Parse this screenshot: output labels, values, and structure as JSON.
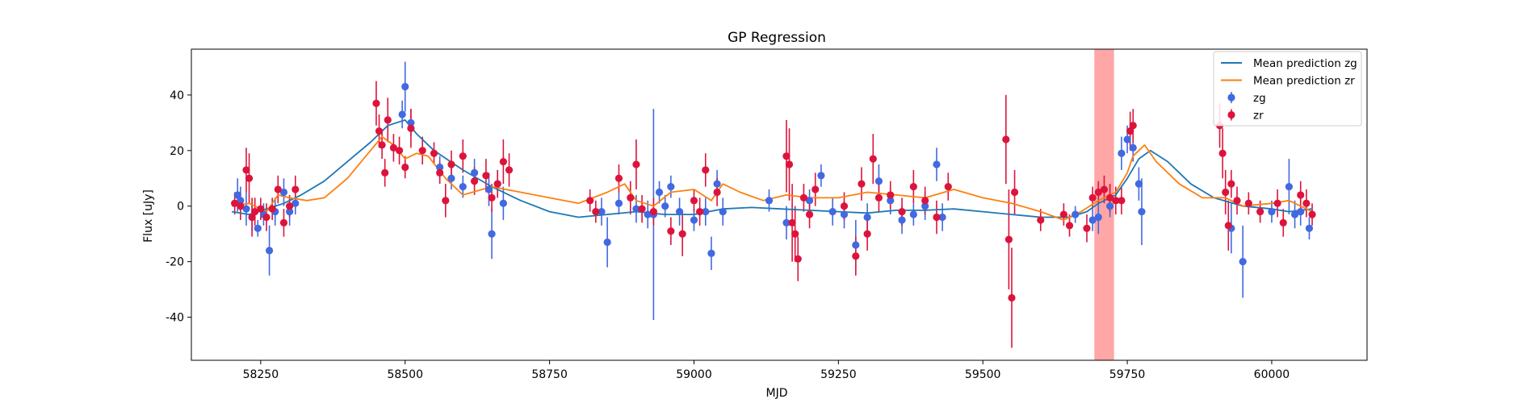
{
  "chart_data": {
    "type": "scatter",
    "title": "GP Regression",
    "xlabel": "MJD",
    "ylabel": "Flux [uJy]",
    "xlim": [
      58130,
      60165
    ],
    "ylim": [
      -55.5,
      56.5
    ],
    "x_ticks": [
      58250,
      58500,
      58750,
      59000,
      59250,
      59500,
      59750,
      60000
    ],
    "y_ticks": [
      -40,
      -20,
      0,
      20,
      40
    ],
    "grid": false,
    "legend": {
      "placement": "top-right",
      "entries": [
        {
          "label": "Mean prediction zg",
          "kind": "line",
          "color": "#1f77b4"
        },
        {
          "label": "Mean prediction zr",
          "kind": "line",
          "color": "#ff7f0e"
        },
        {
          "label": "zg",
          "kind": "errorbar",
          "color": "#4169e1"
        },
        {
          "label": "zr",
          "kind": "errorbar",
          "color": "#dc143c"
        }
      ]
    },
    "highlight": {
      "x_start": 59693,
      "x_end": 59727,
      "color": "#ff0000",
      "alpha": 0.35
    },
    "lines": [
      {
        "name": "Mean prediction zg",
        "color": "#1f77b4",
        "points": [
          [
            58200,
            -2
          ],
          [
            58230,
            -3
          ],
          [
            58260,
            -1
          ],
          [
            58290,
            1
          ],
          [
            58320,
            4
          ],
          [
            58360,
            9
          ],
          [
            58400,
            16
          ],
          [
            58440,
            23
          ],
          [
            58470,
            29
          ],
          [
            58500,
            31
          ],
          [
            58520,
            26
          ],
          [
            58550,
            20
          ],
          [
            58600,
            13
          ],
          [
            58650,
            7
          ],
          [
            58700,
            2
          ],
          [
            58750,
            -2
          ],
          [
            58800,
            -4
          ],
          [
            58850,
            -3
          ],
          [
            58900,
            -2
          ],
          [
            58950,
            -3
          ],
          [
            59000,
            -3
          ],
          [
            59050,
            -1
          ],
          [
            59100,
            -0.5
          ],
          [
            59150,
            -1
          ],
          [
            59200,
            -1.5
          ],
          [
            59250,
            -2
          ],
          [
            59300,
            -2.5
          ],
          [
            59350,
            -1.5
          ],
          [
            59400,
            -1.5
          ],
          [
            59450,
            -1
          ],
          [
            59500,
            -2
          ],
          [
            59550,
            -3
          ],
          [
            59600,
            -4
          ],
          [
            59650,
            -4
          ],
          [
            59680,
            -2
          ],
          [
            59700,
            1
          ],
          [
            59730,
            4
          ],
          [
            59750,
            10
          ],
          [
            59770,
            17
          ],
          [
            59790,
            20
          ],
          [
            59820,
            16
          ],
          [
            59860,
            8
          ],
          [
            59900,
            3
          ],
          [
            59950,
            0
          ],
          [
            60000,
            -1
          ],
          [
            60030,
            -2
          ],
          [
            60070,
            -1
          ]
        ]
      },
      {
        "name": "Mean prediction zr",
        "color": "#ff7f0e",
        "points": [
          [
            58200,
            0
          ],
          [
            58230,
            1
          ],
          [
            58260,
            -2
          ],
          [
            58280,
            4
          ],
          [
            58300,
            3
          ],
          [
            58330,
            2
          ],
          [
            58360,
            3
          ],
          [
            58400,
            10
          ],
          [
            58440,
            20
          ],
          [
            58460,
            25
          ],
          [
            58480,
            22
          ],
          [
            58500,
            17
          ],
          [
            58520,
            19
          ],
          [
            58540,
            18
          ],
          [
            58570,
            10
          ],
          [
            58600,
            4
          ],
          [
            58650,
            7
          ],
          [
            58700,
            5
          ],
          [
            58750,
            3
          ],
          [
            58800,
            1
          ],
          [
            58850,
            5
          ],
          [
            58880,
            8
          ],
          [
            58900,
            2
          ],
          [
            58930,
            0
          ],
          [
            58960,
            5
          ],
          [
            59000,
            6
          ],
          [
            59030,
            2
          ],
          [
            59050,
            8
          ],
          [
            59080,
            5
          ],
          [
            59120,
            2
          ],
          [
            59160,
            4
          ],
          [
            59200,
            3
          ],
          [
            59250,
            3
          ],
          [
            59300,
            5
          ],
          [
            59350,
            4
          ],
          [
            59400,
            3
          ],
          [
            59450,
            6
          ],
          [
            59500,
            3
          ],
          [
            59550,
            1
          ],
          [
            59600,
            -2
          ],
          [
            59640,
            -5
          ],
          [
            59670,
            -2
          ],
          [
            59700,
            2
          ],
          [
            59730,
            5
          ],
          [
            59750,
            12
          ],
          [
            59760,
            18
          ],
          [
            59780,
            22
          ],
          [
            59800,
            16
          ],
          [
            59840,
            8
          ],
          [
            59880,
            3
          ],
          [
            59920,
            3
          ],
          [
            59950,
            0
          ],
          [
            60000,
            1
          ],
          [
            60030,
            2
          ],
          [
            60070,
            -2
          ]
        ]
      }
    ],
    "series": [
      {
        "name": "zg",
        "color": "#4169e1",
        "points": [
          [
            58210,
            4,
            6
          ],
          [
            58215,
            2,
            5
          ],
          [
            58225,
            -1,
            6
          ],
          [
            58235,
            -4,
            5
          ],
          [
            58245,
            -8,
            3
          ],
          [
            58255,
            -3,
            4
          ],
          [
            58265,
            -16,
            9
          ],
          [
            58275,
            -2,
            5
          ],
          [
            58290,
            5,
            5
          ],
          [
            58300,
            -2,
            5
          ],
          [
            58310,
            1,
            4
          ],
          [
            58495,
            33,
            5
          ],
          [
            58500,
            43,
            9
          ],
          [
            58510,
            30,
            5
          ],
          [
            58560,
            14,
            4
          ],
          [
            58580,
            10,
            4
          ],
          [
            58600,
            7,
            4
          ],
          [
            58620,
            12,
            5
          ],
          [
            58645,
            6,
            6
          ],
          [
            58650,
            -10,
            9
          ],
          [
            58660,
            8,
            5
          ],
          [
            58670,
            1,
            6
          ],
          [
            58840,
            -2,
            5
          ],
          [
            58850,
            -13,
            9
          ],
          [
            58870,
            1,
            4
          ],
          [
            58900,
            -1,
            5
          ],
          [
            58920,
            -3,
            5
          ],
          [
            58930,
            -3,
            38
          ],
          [
            58940,
            5,
            4
          ],
          [
            58950,
            0,
            4
          ],
          [
            58960,
            7,
            4
          ],
          [
            58975,
            -2,
            5
          ],
          [
            59000,
            -5,
            4
          ],
          [
            59020,
            -2,
            5
          ],
          [
            59030,
            -17,
            6
          ],
          [
            59040,
            8,
            5
          ],
          [
            59050,
            -2,
            5
          ],
          [
            59130,
            2,
            4
          ],
          [
            59160,
            -6,
            6
          ],
          [
            59200,
            2,
            4
          ],
          [
            59220,
            11,
            4
          ],
          [
            59240,
            -2,
            5
          ],
          [
            59260,
            -3,
            5
          ],
          [
            59280,
            -14,
            9
          ],
          [
            59300,
            -4,
            5
          ],
          [
            59320,
            9,
            6
          ],
          [
            59340,
            2,
            5
          ],
          [
            59360,
            -5,
            5
          ],
          [
            59380,
            -3,
            4
          ],
          [
            59400,
            0,
            5
          ],
          [
            59420,
            15,
            6
          ],
          [
            59430,
            -4,
            5
          ],
          [
            59660,
            -3,
            3
          ],
          [
            59690,
            -5,
            4
          ],
          [
            59700,
            -4,
            6
          ],
          [
            59720,
            0,
            4
          ],
          [
            59740,
            19,
            6
          ],
          [
            59750,
            24,
            5
          ],
          [
            59760,
            21,
            5
          ],
          [
            59770,
            8,
            6
          ],
          [
            59775,
            -2,
            12
          ],
          [
            59930,
            -8,
            9
          ],
          [
            59950,
            -20,
            13
          ],
          [
            60000,
            -2,
            4
          ],
          [
            60030,
            7,
            10
          ],
          [
            60040,
            -3,
            5
          ],
          [
            60050,
            -2,
            5
          ],
          [
            60065,
            -8,
            4
          ]
        ]
      },
      {
        "name": "zr",
        "color": "#dc143c",
        "points": [
          [
            58205,
            1,
            4
          ],
          [
            58215,
            0,
            5
          ],
          [
            58225,
            13,
            8
          ],
          [
            58230,
            10,
            9
          ],
          [
            58235,
            -4,
            7
          ],
          [
            58240,
            -2,
            5
          ],
          [
            58250,
            -1,
            4
          ],
          [
            58260,
            -4,
            5
          ],
          [
            58270,
            -1,
            4
          ],
          [
            58280,
            6,
            5
          ],
          [
            58290,
            -6,
            5
          ],
          [
            58300,
            0,
            4
          ],
          [
            58310,
            6,
            5
          ],
          [
            58450,
            37,
            8
          ],
          [
            58455,
            27,
            6
          ],
          [
            58460,
            22,
            5
          ],
          [
            58465,
            12,
            5
          ],
          [
            58470,
            31,
            8
          ],
          [
            58480,
            21,
            5
          ],
          [
            58490,
            20,
            5
          ],
          [
            58500,
            14,
            4
          ],
          [
            58510,
            28,
            7
          ],
          [
            58530,
            20,
            5
          ],
          [
            58550,
            19,
            4
          ],
          [
            58560,
            12,
            4
          ],
          [
            58570,
            2,
            6
          ],
          [
            58580,
            15,
            5
          ],
          [
            58600,
            18,
            6
          ],
          [
            58620,
            9,
            5
          ],
          [
            58640,
            11,
            6
          ],
          [
            58650,
            3,
            5
          ],
          [
            58660,
            8,
            5
          ],
          [
            58670,
            16,
            8
          ],
          [
            58680,
            13,
            6
          ],
          [
            58820,
            2,
            4
          ],
          [
            58830,
            -2,
            4
          ],
          [
            58870,
            10,
            5
          ],
          [
            58890,
            3,
            6
          ],
          [
            58900,
            15,
            9
          ],
          [
            58910,
            -1,
            5
          ],
          [
            58930,
            -2,
            5
          ],
          [
            58960,
            -9,
            5
          ],
          [
            58980,
            -10,
            8
          ],
          [
            59000,
            2,
            4
          ],
          [
            59010,
            -2,
            5
          ],
          [
            59020,
            13,
            6
          ],
          [
            59040,
            5,
            5
          ],
          [
            59160,
            18,
            13
          ],
          [
            59165,
            15,
            13
          ],
          [
            59170,
            -6,
            14
          ],
          [
            59175,
            -10,
            10
          ],
          [
            59180,
            -19,
            8
          ],
          [
            59190,
            3,
            5
          ],
          [
            59200,
            -3,
            5
          ],
          [
            59210,
            6,
            6
          ],
          [
            59260,
            0,
            5
          ],
          [
            59280,
            -18,
            7
          ],
          [
            59290,
            8,
            6
          ],
          [
            59300,
            -10,
            6
          ],
          [
            59310,
            17,
            9
          ],
          [
            59320,
            3,
            5
          ],
          [
            59340,
            4,
            5
          ],
          [
            59360,
            -2,
            5
          ],
          [
            59380,
            7,
            6
          ],
          [
            59400,
            2,
            5
          ],
          [
            59420,
            -4,
            6
          ],
          [
            59440,
            7,
            5
          ],
          [
            59540,
            24,
            16
          ],
          [
            59545,
            -12,
            18
          ],
          [
            59550,
            -33,
            18
          ],
          [
            59555,
            5,
            8
          ],
          [
            59600,
            -5,
            4
          ],
          [
            59640,
            -3,
            4
          ],
          [
            59650,
            -7,
            4
          ],
          [
            59680,
            -8,
            5
          ],
          [
            59690,
            3,
            4
          ],
          [
            59700,
            5,
            4
          ],
          [
            59710,
            6,
            5
          ],
          [
            59720,
            3,
            5
          ],
          [
            59730,
            2,
            5
          ],
          [
            59740,
            2,
            5
          ],
          [
            59755,
            27,
            7
          ],
          [
            59760,
            29,
            6
          ],
          [
            59910,
            29,
            8
          ],
          [
            59915,
            19,
            9
          ],
          [
            59920,
            5,
            8
          ],
          [
            59925,
            -7,
            9
          ],
          [
            59930,
            8,
            5
          ],
          [
            59940,
            2,
            5
          ],
          [
            59960,
            1,
            4
          ],
          [
            59980,
            -2,
            4
          ],
          [
            60010,
            1,
            5
          ],
          [
            60020,
            -6,
            5
          ],
          [
            60050,
            4,
            5
          ],
          [
            60060,
            1,
            5
          ],
          [
            60070,
            -3,
            4
          ]
        ]
      }
    ]
  }
}
